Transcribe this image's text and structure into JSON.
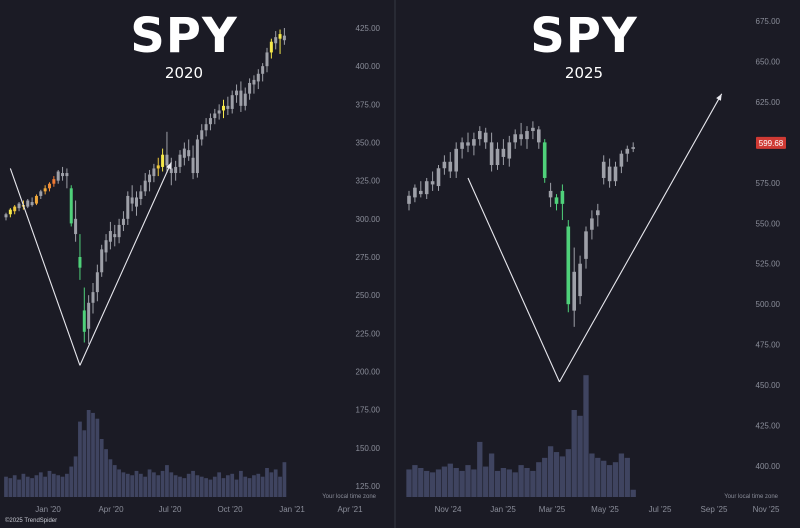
{
  "chart_data": [
    {
      "type": "candlestick",
      "title": "SPY",
      "subtitle": "2020",
      "y_ticks": [
        "425.00",
        "400.00",
        "375.00",
        "350.00",
        "325.00",
        "300.00",
        "275.00",
        "250.00",
        "225.00",
        "200.00",
        "175.00",
        "150.00",
        "125.00"
      ],
      "x_ticks": [
        "Jan '20",
        "Apr '20",
        "Jul '20",
        "Oct '20",
        "Jan '21",
        "Apr '21"
      ],
      "ylim": [
        115,
        432
      ],
      "timezone_note": "Your local time zone",
      "candles": [
        {
          "o": 301,
          "h": 304,
          "l": 299,
          "c": 303,
          "col": "#9ea0a8"
        },
        {
          "o": 303,
          "h": 307,
          "l": 301,
          "c": 306,
          "col": "#f5e84a"
        },
        {
          "o": 305,
          "h": 309,
          "l": 303,
          "c": 308,
          "col": "#f0c93a"
        },
        {
          "o": 307,
          "h": 311,
          "l": 305,
          "c": 310,
          "col": "#9ea0a8"
        },
        {
          "o": 309,
          "h": 312,
          "l": 306,
          "c": 308,
          "col": "#f0c93a"
        },
        {
          "o": 308,
          "h": 313,
          "l": 307,
          "c": 312,
          "col": "#9ea0a8"
        },
        {
          "o": 311,
          "h": 314,
          "l": 308,
          "c": 309,
          "col": "#9ea0a8"
        },
        {
          "o": 310,
          "h": 316,
          "l": 309,
          "c": 315,
          "col": "#f0a83a"
        },
        {
          "o": 315,
          "h": 319,
          "l": 313,
          "c": 318,
          "col": "#9ea0a8"
        },
        {
          "o": 318,
          "h": 322,
          "l": 316,
          "c": 320,
          "col": "#f0a83a"
        },
        {
          "o": 320,
          "h": 324,
          "l": 318,
          "c": 323,
          "col": "#ee8d36"
        },
        {
          "o": 323,
          "h": 328,
          "l": 321,
          "c": 326,
          "col": "#ee7a34"
        },
        {
          "o": 325,
          "h": 332,
          "l": 323,
          "c": 331,
          "col": "#9ea0a8"
        },
        {
          "o": 330,
          "h": 334,
          "l": 325,
          "c": 328,
          "col": "#9ea0a8"
        },
        {
          "o": 328,
          "h": 333,
          "l": 320,
          "c": 330,
          "col": "#9ea0a8"
        },
        {
          "o": 320,
          "h": 322,
          "l": 295,
          "c": 297,
          "col": "#4fd17a"
        },
        {
          "o": 300,
          "h": 312,
          "l": 285,
          "c": 290,
          "col": "#9ea0a8"
        },
        {
          "o": 275,
          "h": 290,
          "l": 260,
          "c": 268,
          "col": "#4fd17a"
        },
        {
          "o": 240,
          "h": 255,
          "l": 219,
          "c": 226,
          "col": "#4fd17a"
        },
        {
          "o": 228,
          "h": 250,
          "l": 218,
          "c": 245,
          "col": "#9ea0a8"
        },
        {
          "o": 245,
          "h": 258,
          "l": 238,
          "c": 252,
          "col": "#9ea0a8"
        },
        {
          "o": 252,
          "h": 270,
          "l": 246,
          "c": 265,
          "col": "#9ea0a8"
        },
        {
          "o": 265,
          "h": 283,
          "l": 262,
          "c": 280,
          "col": "#9ea0a8"
        },
        {
          "o": 278,
          "h": 290,
          "l": 272,
          "c": 286,
          "col": "#9ea0a8"
        },
        {
          "o": 285,
          "h": 298,
          "l": 280,
          "c": 292,
          "col": "#9ea0a8"
        },
        {
          "o": 290,
          "h": 296,
          "l": 282,
          "c": 288,
          "col": "#9ea0a8"
        },
        {
          "o": 288,
          "h": 300,
          "l": 284,
          "c": 296,
          "col": "#9ea0a8"
        },
        {
          "o": 296,
          "h": 305,
          "l": 292,
          "c": 300,
          "col": "#9ea0a8"
        },
        {
          "o": 300,
          "h": 318,
          "l": 296,
          "c": 315,
          "col": "#9ea0a8"
        },
        {
          "o": 314,
          "h": 322,
          "l": 305,
          "c": 310,
          "col": "#9ea0a8"
        },
        {
          "o": 308,
          "h": 318,
          "l": 302,
          "c": 314,
          "col": "#9ea0a8"
        },
        {
          "o": 313,
          "h": 322,
          "l": 309,
          "c": 318,
          "col": "#9ea0a8"
        },
        {
          "o": 318,
          "h": 330,
          "l": 315,
          "c": 325,
          "col": "#9ea0a8"
        },
        {
          "o": 324,
          "h": 332,
          "l": 318,
          "c": 329,
          "col": "#9ea0a8"
        },
        {
          "o": 328,
          "h": 336,
          "l": 324,
          "c": 333,
          "col": "#9ea0a8"
        },
        {
          "o": 333,
          "h": 340,
          "l": 328,
          "c": 335,
          "col": "#f0c93a"
        },
        {
          "o": 334,
          "h": 346,
          "l": 331,
          "c": 342,
          "col": "#f5e84a"
        },
        {
          "o": 342,
          "h": 357,
          "l": 330,
          "c": 335,
          "col": "#9ea0a8"
        },
        {
          "o": 333,
          "h": 340,
          "l": 322,
          "c": 330,
          "col": "#9ea0a8"
        },
        {
          "o": 330,
          "h": 338,
          "l": 325,
          "c": 334,
          "col": "#9ea0a8"
        },
        {
          "o": 334,
          "h": 345,
          "l": 330,
          "c": 342,
          "col": "#9ea0a8"
        },
        {
          "o": 340,
          "h": 350,
          "l": 335,
          "c": 346,
          "col": "#9ea0a8"
        },
        {
          "o": 345,
          "h": 352,
          "l": 338,
          "c": 341,
          "col": "#9ea0a8"
        },
        {
          "o": 340,
          "h": 348,
          "l": 326,
          "c": 330,
          "col": "#9ea0a8"
        },
        {
          "o": 330,
          "h": 355,
          "l": 327,
          "c": 352,
          "col": "#9ea0a8"
        },
        {
          "o": 352,
          "h": 362,
          "l": 348,
          "c": 358,
          "col": "#9ea0a8"
        },
        {
          "o": 358,
          "h": 366,
          "l": 354,
          "c": 362,
          "col": "#9ea0a8"
        },
        {
          "o": 362,
          "h": 369,
          "l": 358,
          "c": 366,
          "col": "#9ea0a8"
        },
        {
          "o": 366,
          "h": 372,
          "l": 362,
          "c": 369,
          "col": "#9ea0a8"
        },
        {
          "o": 369,
          "h": 375,
          "l": 365,
          "c": 371,
          "col": "#9ea0a8"
        },
        {
          "o": 371,
          "h": 378,
          "l": 366,
          "c": 374,
          "col": "#f5e84a"
        },
        {
          "o": 374,
          "h": 380,
          "l": 368,
          "c": 372,
          "col": "#9ea0a8"
        },
        {
          "o": 372,
          "h": 384,
          "l": 369,
          "c": 381,
          "col": "#9ea0a8"
        },
        {
          "o": 381,
          "h": 388,
          "l": 376,
          "c": 384,
          "col": "#9ea0a8"
        },
        {
          "o": 384,
          "h": 390,
          "l": 370,
          "c": 374,
          "col": "#9ea0a8"
        },
        {
          "o": 374,
          "h": 386,
          "l": 371,
          "c": 382,
          "col": "#9ea0a8"
        },
        {
          "o": 382,
          "h": 392,
          "l": 378,
          "c": 389,
          "col": "#9ea0a8"
        },
        {
          "o": 388,
          "h": 394,
          "l": 382,
          "c": 391,
          "col": "#9ea0a8"
        },
        {
          "o": 390,
          "h": 398,
          "l": 385,
          "c": 395,
          "col": "#9ea0a8"
        },
        {
          "o": 395,
          "h": 402,
          "l": 390,
          "c": 400,
          "col": "#9ea0a8"
        },
        {
          "o": 400,
          "h": 412,
          "l": 396,
          "c": 409,
          "col": "#9ea0a8"
        },
        {
          "o": 409,
          "h": 418,
          "l": 405,
          "c": 416,
          "col": "#f5e84a"
        },
        {
          "o": 415,
          "h": 423,
          "l": 411,
          "c": 419,
          "col": "#9ea0a8"
        },
        {
          "o": 418,
          "h": 424,
          "l": 408,
          "c": 421,
          "col": "#f5e84a"
        },
        {
          "o": 420,
          "h": 425,
          "l": 414,
          "c": 417,
          "col": "#9ea0a8"
        }
      ],
      "volume": [
        14,
        13,
        15,
        12,
        16,
        14,
        13,
        15,
        17,
        14,
        18,
        16,
        15,
        14,
        16,
        21,
        28,
        52,
        46,
        60,
        58,
        54,
        40,
        33,
        26,
        22,
        19,
        17,
        16,
        15,
        18,
        16,
        14,
        19,
        17,
        15,
        18,
        22,
        17,
        15,
        14,
        13,
        16,
        18,
        15,
        14,
        13,
        12,
        14,
        17,
        13,
        15,
        16,
        12,
        18,
        14,
        13,
        15,
        16,
        14,
        20,
        17,
        19,
        14,
        24
      ],
      "arrows": [
        {
          "from": [
            1,
            333
          ],
          "to": [
            17,
            204
          ]
        },
        {
          "from": [
            17,
            204
          ],
          "to": [
            38,
            337
          ]
        }
      ]
    },
    {
      "type": "candlestick",
      "title": "SPY",
      "subtitle": "2025",
      "y_ticks": [
        "675.00",
        "650.00",
        "625.00",
        "600.00",
        "575.00",
        "550.00",
        "525.00",
        "500.00",
        "475.00",
        "450.00",
        "425.00",
        "400.00"
      ],
      "x_ticks": [
        "Nov '24",
        "Jan '25",
        "Mar '25",
        "May '25",
        "Jul '25",
        "Sep '25",
        "Nov '25"
      ],
      "ylim": [
        382,
        680
      ],
      "last_price": "599.68",
      "last_price_color": "#cf3a34",
      "timezone_note": "Your local time zone",
      "candles": [
        {
          "o": 562,
          "h": 570,
          "l": 558,
          "c": 567,
          "col": "#9ea0a8"
        },
        {
          "o": 566,
          "h": 574,
          "l": 563,
          "c": 572,
          "col": "#9ea0a8"
        },
        {
          "o": 570,
          "h": 576,
          "l": 566,
          "c": 568,
          "col": "#9ea0a8"
        },
        {
          "o": 568,
          "h": 578,
          "l": 565,
          "c": 576,
          "col": "#9ea0a8"
        },
        {
          "o": 576,
          "h": 582,
          "l": 570,
          "c": 574,
          "col": "#9ea0a8"
        },
        {
          "o": 573,
          "h": 586,
          "l": 570,
          "c": 584,
          "col": "#9ea0a8"
        },
        {
          "o": 584,
          "h": 592,
          "l": 580,
          "c": 588,
          "col": "#9ea0a8"
        },
        {
          "o": 588,
          "h": 594,
          "l": 578,
          "c": 582,
          "col": "#9ea0a8"
        },
        {
          "o": 582,
          "h": 600,
          "l": 578,
          "c": 596,
          "col": "#9ea0a8"
        },
        {
          "o": 596,
          "h": 603,
          "l": 590,
          "c": 600,
          "col": "#9ea0a8"
        },
        {
          "o": 600,
          "h": 606,
          "l": 594,
          "c": 598,
          "col": "#9ea0a8"
        },
        {
          "o": 598,
          "h": 606,
          "l": 592,
          "c": 602,
          "col": "#9ea0a8"
        },
        {
          "o": 602,
          "h": 610,
          "l": 598,
          "c": 607,
          "col": "#9ea0a8"
        },
        {
          "o": 606,
          "h": 609,
          "l": 596,
          "c": 600,
          "col": "#9ea0a8"
        },
        {
          "o": 600,
          "h": 606,
          "l": 582,
          "c": 586,
          "col": "#9ea0a8"
        },
        {
          "o": 586,
          "h": 600,
          "l": 583,
          "c": 596,
          "col": "#9ea0a8"
        },
        {
          "o": 596,
          "h": 602,
          "l": 586,
          "c": 591,
          "col": "#9ea0a8"
        },
        {
          "o": 590,
          "h": 604,
          "l": 585,
          "c": 600,
          "col": "#9ea0a8"
        },
        {
          "o": 600,
          "h": 608,
          "l": 596,
          "c": 605,
          "col": "#9ea0a8"
        },
        {
          "o": 605,
          "h": 612,
          "l": 598,
          "c": 602,
          "col": "#9ea0a8"
        },
        {
          "o": 602,
          "h": 610,
          "l": 596,
          "c": 607,
          "col": "#9ea0a8"
        },
        {
          "o": 607,
          "h": 613,
          "l": 602,
          "c": 609,
          "col": "#9ea0a8"
        },
        {
          "o": 608,
          "h": 610,
          "l": 596,
          "c": 600,
          "col": "#9ea0a8"
        },
        {
          "o": 600,
          "h": 602,
          "l": 575,
          "c": 578,
          "col": "#4fd17a"
        },
        {
          "o": 570,
          "h": 575,
          "l": 560,
          "c": 566,
          "col": "#9ea0a8"
        },
        {
          "o": 566,
          "h": 568,
          "l": 558,
          "c": 562,
          "col": "#4fd17a"
        },
        {
          "o": 562,
          "h": 574,
          "l": 552,
          "c": 570,
          "col": "#4fd17a"
        },
        {
          "o": 548,
          "h": 552,
          "l": 495,
          "c": 500,
          "col": "#4fd17a"
        },
        {
          "o": 520,
          "h": 535,
          "l": 486,
          "c": 496,
          "col": "#9ea0a8"
        },
        {
          "o": 505,
          "h": 530,
          "l": 500,
          "c": 525,
          "col": "#9ea0a8"
        },
        {
          "o": 528,
          "h": 548,
          "l": 522,
          "c": 545,
          "col": "#9ea0a8"
        },
        {
          "o": 546,
          "h": 558,
          "l": 540,
          "c": 553,
          "col": "#9ea0a8"
        },
        {
          "o": 555,
          "h": 562,
          "l": 548,
          "c": 558,
          "col": "#9ea0a8"
        },
        {
          "o": 578,
          "h": 592,
          "l": 574,
          "c": 588,
          "col": "#9ea0a8"
        },
        {
          "o": 585,
          "h": 590,
          "l": 572,
          "c": 576,
          "col": "#9ea0a8"
        },
        {
          "o": 576,
          "h": 588,
          "l": 573,
          "c": 585,
          "col": "#9ea0a8"
        },
        {
          "o": 585,
          "h": 595,
          "l": 581,
          "c": 593,
          "col": "#9ea0a8"
        },
        {
          "o": 593,
          "h": 598,
          "l": 588,
          "c": 596,
          "col": "#9ea0a8"
        },
        {
          "o": 596,
          "h": 600,
          "l": 594,
          "c": 597,
          "col": "#9ea0a8"
        }
      ],
      "volume": [
        19,
        22,
        20,
        18,
        17,
        19,
        21,
        23,
        20,
        18,
        22,
        19,
        38,
        21,
        30,
        18,
        20,
        19,
        17,
        22,
        20,
        18,
        24,
        27,
        35,
        31,
        28,
        33,
        60,
        56,
        84,
        30,
        27,
        25,
        22,
        24,
        30,
        27,
        5
      ],
      "arrows": [
        {
          "from": [
            10,
            578
          ],
          "to": [
            25.5,
            452
          ]
        },
        {
          "from": [
            25.5,
            452
          ],
          "to": [
            53,
            630
          ]
        }
      ]
    }
  ],
  "watermark": "©2025 TrendSpider",
  "colors": {
    "background": "#1b1b25",
    "divider": "#2c2f3a",
    "grid_text": "#8a8d99",
    "volume": "#3f4460",
    "arrow": "#e8e8ee",
    "green": "#4fd17a"
  }
}
